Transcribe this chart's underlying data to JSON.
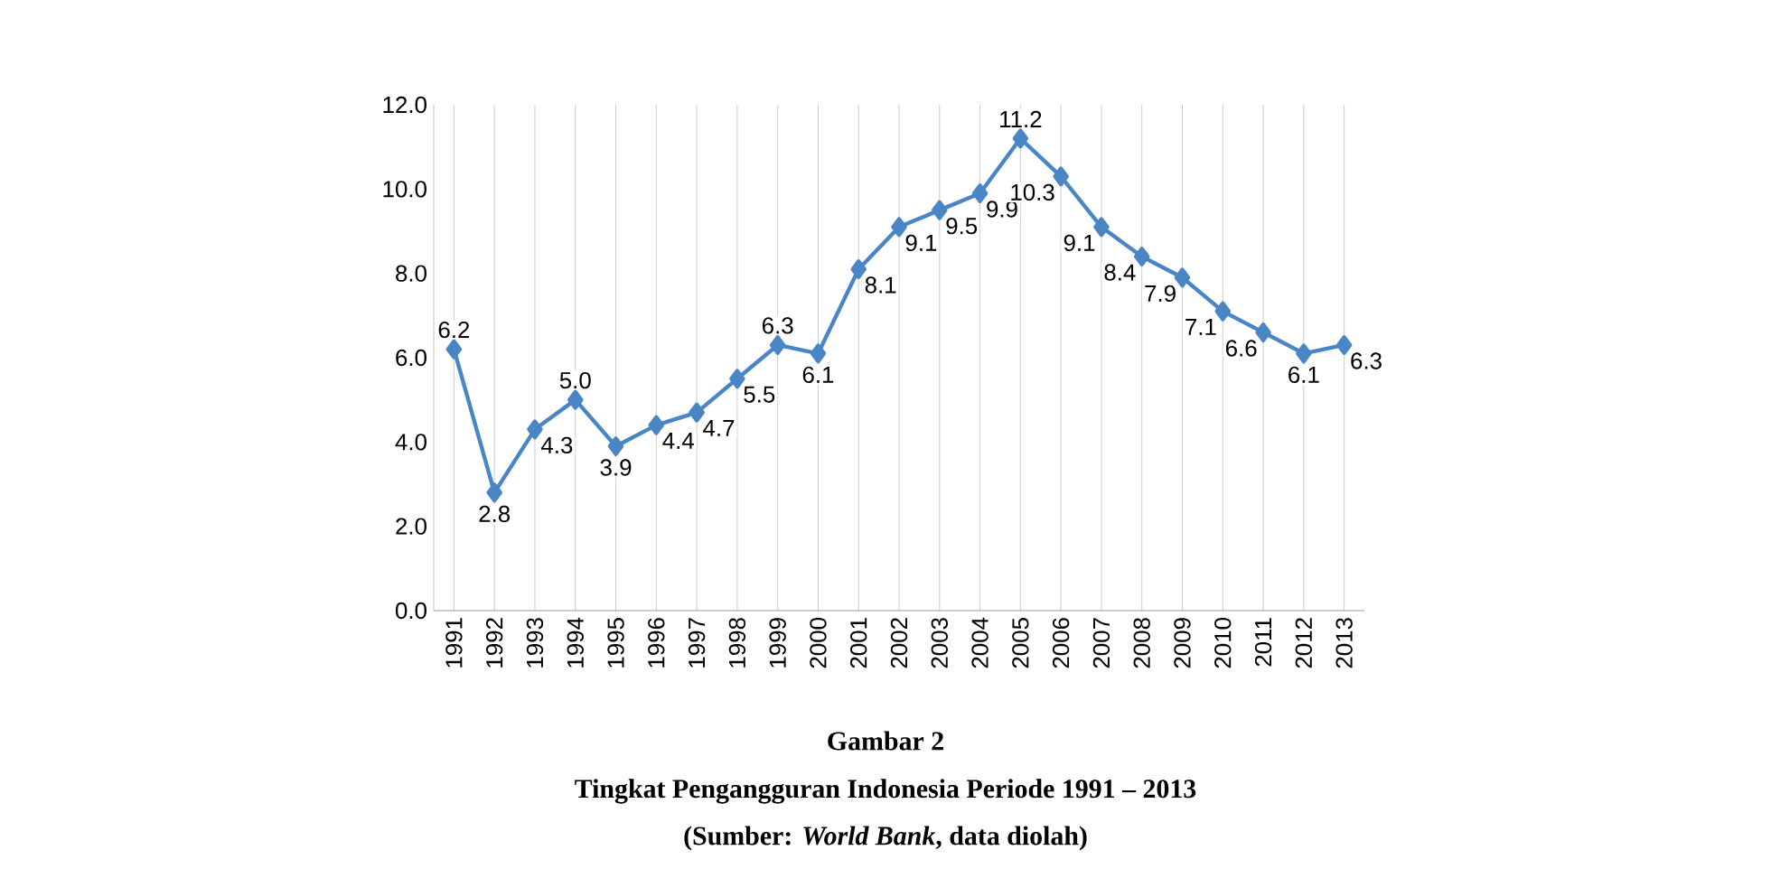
{
  "chart_data": {
    "type": "line",
    "title": "Gambar 2",
    "subtitle": "Tingkat Pengangguran Indonesia Periode 1991 – 2013",
    "annotations": [
      "(Sumber: *World Bank*, data diolah)"
    ],
    "categories": [
      "1991",
      "1992",
      "1993",
      "1994",
      "1995",
      "1996",
      "1997",
      "1998",
      "1999",
      "2000",
      "2001",
      "2002",
      "2003",
      "2004",
      "2005",
      "2006",
      "2007",
      "2008",
      "2009",
      "2010",
      "2011",
      "2012",
      "2013"
    ],
    "values": [
      6.2,
      2.8,
      4.3,
      5.0,
      3.9,
      4.4,
      4.7,
      5.5,
      6.3,
      6.1,
      8.1,
      9.1,
      9.5,
      9.9,
      11.2,
      10.3,
      9.1,
      8.4,
      7.9,
      7.1,
      6.6,
      6.1,
      6.3
    ],
    "value_labels": [
      "6.2",
      "2.8",
      "4.3",
      "5.0",
      "3.9",
      "4.4",
      "4.7",
      "5.5",
      "6.3",
      "6.1",
      "8.1",
      "9.1",
      "9.5",
      "9.9",
      "11.2",
      "10.3",
      "9.1",
      "8.4",
      "7.9",
      "7.1",
      "6.6",
      "6.1",
      "6.3"
    ],
    "color": "#4a86c5",
    "marker": "diamond",
    "line_style": "solid",
    "grid": "x",
    "ylim": [
      0,
      12
    ],
    "yticks": [
      {
        "value": 0,
        "label": "0.0"
      },
      {
        "value": 2,
        "label": "2.0"
      },
      {
        "value": 4,
        "label": "4.0"
      },
      {
        "value": 6,
        "label": "6.0"
      },
      {
        "value": 8,
        "label": "8.0"
      },
      {
        "value": 10,
        "label": "10.0"
      },
      {
        "value": 12,
        "label": "12.0"
      }
    ]
  }
}
